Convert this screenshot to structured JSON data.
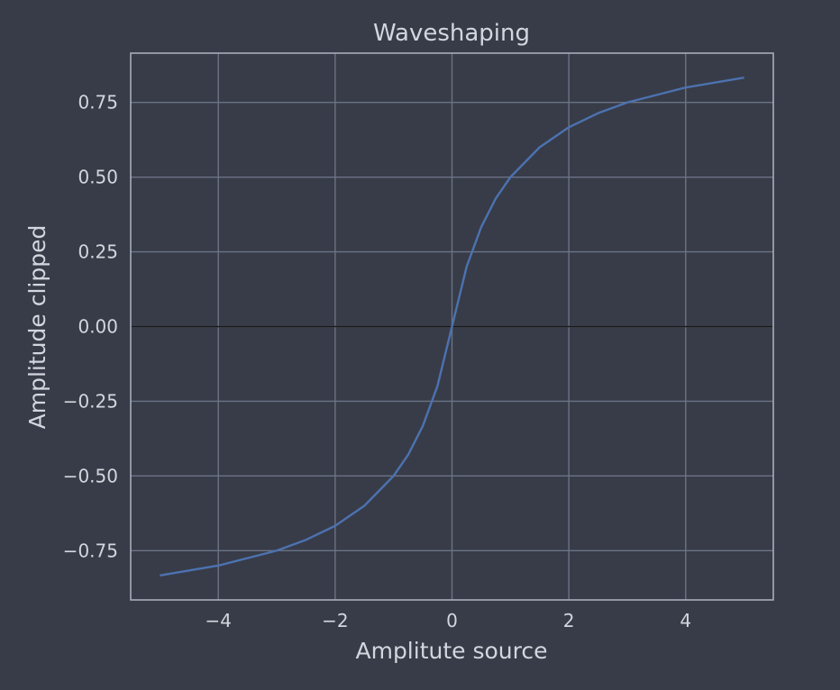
{
  "chart_data": {
    "type": "line",
    "title": "Waveshaping",
    "xlabel": "Amplitute source",
    "ylabel": "Amplitude clipped",
    "xlim": [
      -5.5,
      5.5
    ],
    "ylim": [
      -0.915,
      0.915
    ],
    "xticks": [
      -4,
      -2,
      0,
      2,
      4
    ],
    "xtick_labels": [
      "−4",
      "−2",
      "0",
      "2",
      "4"
    ],
    "yticks": [
      0.75,
      0.5,
      0.25,
      0.0,
      -0.25,
      -0.5,
      -0.75
    ],
    "ytick_labels": [
      "0.75",
      "0.50",
      "0.25",
      "0.00",
      "−0.25",
      "−0.50",
      "−0.75"
    ],
    "grid": true,
    "zero_line": true,
    "series": [
      {
        "color": "#4c72b0",
        "x": [
          -5,
          -4,
          -3,
          -2.5,
          -2,
          -1.5,
          -1,
          -0.75,
          -0.5,
          -0.25,
          0,
          0.25,
          0.5,
          0.75,
          1,
          1.5,
          2,
          2.5,
          3,
          4,
          5
        ],
        "y": [
          -0.833,
          -0.8,
          -0.75,
          -0.714,
          -0.667,
          -0.6,
          -0.5,
          -0.429,
          -0.333,
          -0.2,
          0,
          0.2,
          0.333,
          0.429,
          0.5,
          0.6,
          0.667,
          0.714,
          0.75,
          0.8,
          0.833
        ]
      }
    ]
  },
  "colors": {
    "background": "#383c48",
    "plot_background": "#383c48",
    "grid": "#6b7386",
    "frame": "#a7adbb",
    "zero_line": "#1a1a1a",
    "text": "#d2d6de"
  }
}
